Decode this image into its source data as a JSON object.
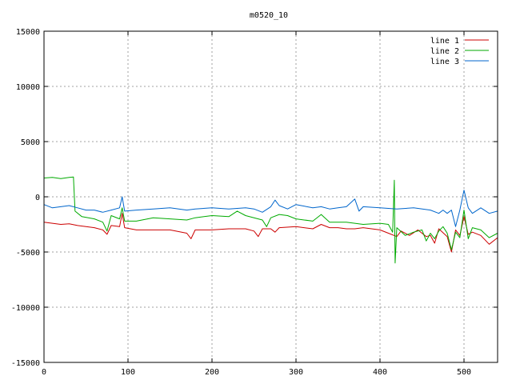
{
  "chart_data": {
    "type": "line",
    "title": "m0520_10",
    "xlabel": "",
    "ylabel": "",
    "xlim": [
      0,
      540
    ],
    "ylim": [
      -15000,
      15000
    ],
    "xticks": [
      0,
      100,
      200,
      300,
      400,
      500
    ],
    "yticks": [
      -15000,
      -10000,
      -5000,
      0,
      5000,
      10000,
      15000
    ],
    "grid": true,
    "legend_position": "top-right",
    "series": [
      {
        "name": "line 1",
        "color": "#cc0000",
        "points": [
          [
            0,
            -2300
          ],
          [
            10,
            -2400
          ],
          [
            20,
            -2500
          ],
          [
            30,
            -2450
          ],
          [
            40,
            -2600
          ],
          [
            50,
            -2700
          ],
          [
            60,
            -2800
          ],
          [
            70,
            -3000
          ],
          [
            75,
            -3400
          ],
          [
            80,
            -2600
          ],
          [
            90,
            -2700
          ],
          [
            93,
            -1500
          ],
          [
            96,
            -2800
          ],
          [
            110,
            -3000
          ],
          [
            130,
            -3000
          ],
          [
            150,
            -3000
          ],
          [
            170,
            -3300
          ],
          [
            175,
            -3800
          ],
          [
            180,
            -3000
          ],
          [
            200,
            -3000
          ],
          [
            220,
            -2900
          ],
          [
            240,
            -2900
          ],
          [
            250,
            -3100
          ],
          [
            255,
            -3600
          ],
          [
            260,
            -2900
          ],
          [
            270,
            -2900
          ],
          [
            275,
            -3200
          ],
          [
            280,
            -2800
          ],
          [
            300,
            -2700
          ],
          [
            320,
            -2900
          ],
          [
            330,
            -2500
          ],
          [
            340,
            -2800
          ],
          [
            350,
            -2800
          ],
          [
            360,
            -2900
          ],
          [
            370,
            -2900
          ],
          [
            380,
            -2800
          ],
          [
            400,
            -3000
          ],
          [
            410,
            -3300
          ],
          [
            420,
            -3600
          ],
          [
            425,
            -3100
          ],
          [
            435,
            -3500
          ],
          [
            445,
            -3000
          ],
          [
            455,
            -3600
          ],
          [
            460,
            -3500
          ],
          [
            465,
            -4200
          ],
          [
            470,
            -2900
          ],
          [
            480,
            -3600
          ],
          [
            485,
            -5000
          ],
          [
            490,
            -3000
          ],
          [
            495,
            -3500
          ],
          [
            500,
            -1800
          ],
          [
            505,
            -3400
          ],
          [
            510,
            -3200
          ],
          [
            520,
            -3500
          ],
          [
            530,
            -4300
          ],
          [
            540,
            -3700
          ]
        ]
      },
      {
        "name": "line 2",
        "color": "#00aa00",
        "points": [
          [
            0,
            1700
          ],
          [
            10,
            1750
          ],
          [
            20,
            1650
          ],
          [
            30,
            1750
          ],
          [
            35,
            1800
          ],
          [
            37,
            -1300
          ],
          [
            45,
            -1800
          ],
          [
            60,
            -2000
          ],
          [
            70,
            -2300
          ],
          [
            75,
            -3100
          ],
          [
            80,
            -1700
          ],
          [
            90,
            -2000
          ],
          [
            93,
            -1000
          ],
          [
            96,
            -2200
          ],
          [
            110,
            -2200
          ],
          [
            130,
            -1900
          ],
          [
            150,
            -2000
          ],
          [
            170,
            -2100
          ],
          [
            180,
            -1900
          ],
          [
            200,
            -1700
          ],
          [
            220,
            -1800
          ],
          [
            230,
            -1300
          ],
          [
            240,
            -1700
          ],
          [
            260,
            -2100
          ],
          [
            265,
            -2700
          ],
          [
            270,
            -1900
          ],
          [
            280,
            -1600
          ],
          [
            290,
            -1700
          ],
          [
            300,
            -2000
          ],
          [
            320,
            -2200
          ],
          [
            330,
            -1600
          ],
          [
            340,
            -2300
          ],
          [
            360,
            -2300
          ],
          [
            380,
            -2500
          ],
          [
            400,
            -2400
          ],
          [
            410,
            -2500
          ],
          [
            415,
            -3200
          ],
          [
            417,
            1500
          ],
          [
            418,
            -6000
          ],
          [
            420,
            -2800
          ],
          [
            430,
            -3500
          ],
          [
            440,
            -3200
          ],
          [
            450,
            -3000
          ],
          [
            455,
            -4000
          ],
          [
            460,
            -3300
          ],
          [
            465,
            -3800
          ],
          [
            470,
            -3100
          ],
          [
            475,
            -2700
          ],
          [
            480,
            -3300
          ],
          [
            485,
            -4800
          ],
          [
            490,
            -3200
          ],
          [
            495,
            -3700
          ],
          [
            500,
            -1200
          ],
          [
            505,
            -3800
          ],
          [
            510,
            -2800
          ],
          [
            520,
            -3000
          ],
          [
            530,
            -3700
          ],
          [
            540,
            -3300
          ]
        ]
      },
      {
        "name": "line 3",
        "color": "#0066cc",
        "points": [
          [
            0,
            -700
          ],
          [
            10,
            -1000
          ],
          [
            20,
            -900
          ],
          [
            30,
            -800
          ],
          [
            40,
            -1000
          ],
          [
            50,
            -1200
          ],
          [
            60,
            -1200
          ],
          [
            70,
            -1400
          ],
          [
            80,
            -1200
          ],
          [
            90,
            -1000
          ],
          [
            93,
            0
          ],
          [
            96,
            -1300
          ],
          [
            110,
            -1200
          ],
          [
            130,
            -1100
          ],
          [
            150,
            -1000
          ],
          [
            170,
            -1200
          ],
          [
            180,
            -1100
          ],
          [
            200,
            -1000
          ],
          [
            220,
            -1100
          ],
          [
            240,
            -1000
          ],
          [
            250,
            -1100
          ],
          [
            260,
            -1400
          ],
          [
            270,
            -900
          ],
          [
            275,
            -300
          ],
          [
            280,
            -800
          ],
          [
            290,
            -1100
          ],
          [
            300,
            -700
          ],
          [
            320,
            -1000
          ],
          [
            330,
            -900
          ],
          [
            340,
            -1100
          ],
          [
            350,
            -1000
          ],
          [
            360,
            -900
          ],
          [
            370,
            -200
          ],
          [
            375,
            -1300
          ],
          [
            380,
            -900
          ],
          [
            400,
            -1000
          ],
          [
            420,
            -1100
          ],
          [
            440,
            -1000
          ],
          [
            460,
            -1200
          ],
          [
            470,
            -1500
          ],
          [
            475,
            -1200
          ],
          [
            480,
            -1500
          ],
          [
            485,
            -1200
          ],
          [
            490,
            -2700
          ],
          [
            495,
            -1200
          ],
          [
            500,
            600
          ],
          [
            505,
            -1000
          ],
          [
            510,
            -1500
          ],
          [
            520,
            -1000
          ],
          [
            530,
            -1500
          ],
          [
            540,
            -1300
          ]
        ]
      }
    ]
  }
}
